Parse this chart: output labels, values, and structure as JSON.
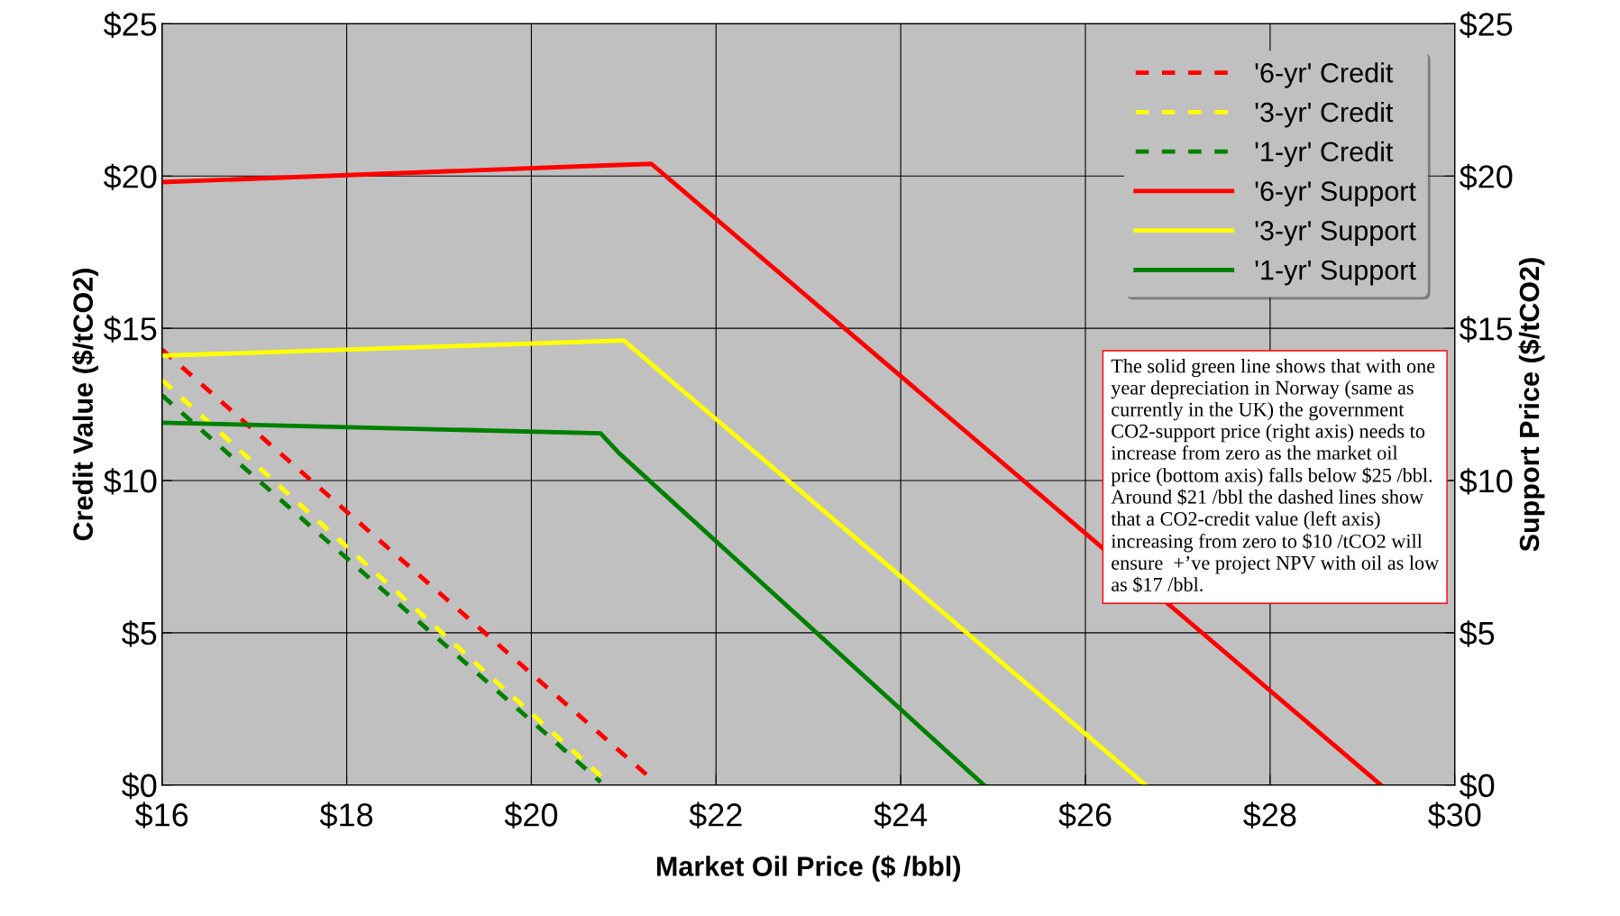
{
  "chart_data": {
    "type": "line",
    "xlabel": "Market Oil Price ($ /bbl)",
    "ylabel": "Credit Value ($/tCO2)",
    "y2label": "Support Price ($/tCO2)",
    "xlim": [
      16,
      30
    ],
    "xticks": [
      {
        "value": 16,
        "label": "$16"
      },
      {
        "value": 18,
        "label": "$18"
      },
      {
        "value": 20,
        "label": "$20"
      },
      {
        "value": 22,
        "label": "$22"
      },
      {
        "value": 24,
        "label": "$24"
      },
      {
        "value": 26,
        "label": "$26"
      },
      {
        "value": 28,
        "label": "$28"
      },
      {
        "value": 30,
        "label": "$30"
      }
    ],
    "ylim": [
      0,
      25
    ],
    "yticks": [
      {
        "value": 0,
        "label": "$0"
      },
      {
        "value": 5,
        "label": "$5"
      },
      {
        "value": 10,
        "label": "$10"
      },
      {
        "value": 15,
        "label": "$15"
      },
      {
        "value": 20,
        "label": "$20"
      },
      {
        "value": 25,
        "label": "$25"
      }
    ],
    "y2lim": [
      0,
      25
    ],
    "y2ticks": [
      {
        "value": 0,
        "label": "$0"
      },
      {
        "value": 5,
        "label": "$5"
      },
      {
        "value": 10,
        "label": "$10"
      },
      {
        "value": 15,
        "label": "$15"
      },
      {
        "value": 20,
        "label": "$20"
      },
      {
        "value": 25,
        "label": "$25"
      }
    ],
    "grid": true,
    "legend": "top right",
    "series": [
      {
        "name": "'6-yr' Credit",
        "color": "#ff0000",
        "line_style": "dashed",
        "x": [
          16,
          21.3
        ],
        "values": [
          14.3,
          0.2
        ]
      },
      {
        "name": "'3-yr' Credit",
        "color": "#ffff00",
        "line_style": "dashed",
        "x": [
          16,
          20.75
        ],
        "values": [
          13.3,
          0.3
        ]
      },
      {
        "name": "'1-yr' Credit",
        "color": "#008000",
        "line_style": "dashed",
        "x": [
          16,
          20.75
        ],
        "values": [
          12.8,
          0.1
        ]
      },
      {
        "name": "'6-yr' Support",
        "color": "#ff0000",
        "line_style": "solid",
        "axis": "y2",
        "x": [
          16,
          20.8,
          21.3,
          29.2
        ],
        "values": [
          19.8,
          20.35,
          20.4,
          0
        ]
      },
      {
        "name": "'3-yr' Support",
        "color": "#ffff00",
        "line_style": "solid",
        "axis": "y2",
        "x": [
          16,
          21.0,
          26.65
        ],
        "values": [
          14.1,
          14.6,
          0
        ]
      },
      {
        "name": "'1-yr' Support",
        "color": "#008000",
        "line_style": "solid",
        "axis": "y2",
        "x": [
          16,
          20.75,
          20.95,
          24.9
        ],
        "values": [
          11.9,
          11.55,
          10.9,
          0
        ]
      }
    ],
    "annotations": [
      "The solid green line shows that with one year depreciation in Norway (same as currently in the UK) the government CO2-support price (right axis) needs to increase from zero as the market oil price (bottom axis) falls below $25 /bbl. Around $21 /bbl the dashed lines show that a CO2-credit value (left axis) increasing from zero to $10 /tCO2 will ensure  +’ve project NPV with oil as low as $17 /bbl."
    ]
  }
}
